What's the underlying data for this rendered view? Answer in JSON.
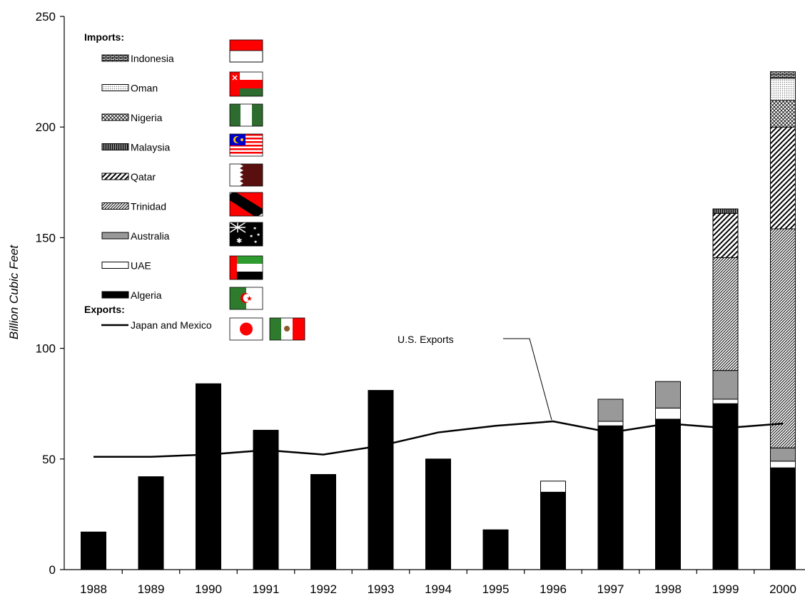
{
  "chart_data": {
    "type": "bar",
    "stacked": true,
    "ylabel": "Billion Cubic Feet",
    "ylim": [
      0,
      250
    ],
    "yticks": [
      "0",
      "50",
      "100",
      "150",
      "200",
      "250"
    ],
    "categories": [
      "1988",
      "1989",
      "1990",
      "1991",
      "1992",
      "1993",
      "1994",
      "1995",
      "1996",
      "1997",
      "1998",
      "1999",
      "2000"
    ],
    "series": [
      {
        "name": "Algeria",
        "pattern": "solid-black",
        "values": [
          17,
          42,
          84,
          63,
          43,
          81,
          50,
          18,
          35,
          65,
          68,
          75,
          46
        ]
      },
      {
        "name": "UAE",
        "pattern": "white",
        "values": [
          0,
          0,
          0,
          0,
          0,
          0,
          0,
          0,
          5,
          2,
          5,
          2,
          3
        ]
      },
      {
        "name": "Australia",
        "pattern": "gray",
        "values": [
          0,
          0,
          0,
          0,
          0,
          0,
          0,
          0,
          0,
          10,
          12,
          13,
          6
        ]
      },
      {
        "name": "Trinidad",
        "pattern": "diagonal-dense",
        "values": [
          0,
          0,
          0,
          0,
          0,
          0,
          0,
          0,
          0,
          0,
          0,
          51,
          99
        ]
      },
      {
        "name": "Qatar",
        "pattern": "diagonal-coarse",
        "values": [
          0,
          0,
          0,
          0,
          0,
          0,
          0,
          0,
          0,
          0,
          0,
          20,
          46
        ]
      },
      {
        "name": "Malaysia",
        "pattern": "vertical-stripes",
        "values": [
          0,
          0,
          0,
          0,
          0,
          0,
          0,
          0,
          0,
          0,
          0,
          2,
          0
        ]
      },
      {
        "name": "Nigeria",
        "pattern": "crosshatch",
        "values": [
          0,
          0,
          0,
          0,
          0,
          0,
          0,
          0,
          0,
          0,
          0,
          0,
          12
        ]
      },
      {
        "name": "Oman",
        "pattern": "dots",
        "values": [
          0,
          0,
          0,
          0,
          0,
          0,
          0,
          0,
          0,
          0,
          0,
          0,
          10
        ]
      },
      {
        "name": "Indonesia",
        "pattern": "brick",
        "values": [
          0,
          0,
          0,
          0,
          0,
          0,
          0,
          0,
          0,
          0,
          0,
          0,
          3
        ]
      }
    ],
    "line": {
      "name": "Japan and Mexico",
      "values": [
        51,
        51,
        52,
        54,
        52,
        56,
        62,
        65,
        67,
        62,
        66,
        64,
        66
      ]
    },
    "legend": {
      "imports_heading": "Imports:",
      "exports_heading": "Exports:",
      "items": [
        {
          "label": "Indonesia",
          "pattern": "brick",
          "flag": "indonesia-flag"
        },
        {
          "label": "Oman",
          "pattern": "dots",
          "flag": "oman-flag"
        },
        {
          "label": "Nigeria",
          "pattern": "crosshatch",
          "flag": "nigeria-flag"
        },
        {
          "label": "Malaysia",
          "pattern": "vertical-stripes",
          "flag": "malaysia-flag"
        },
        {
          "label": "Qatar",
          "pattern": "diagonal-coarse",
          "flag": "qatar-flag"
        },
        {
          "label": "Trinidad",
          "pattern": "diagonal-dense",
          "flag": "trinidad-flag"
        },
        {
          "label": "Australia",
          "pattern": "gray",
          "flag": "australia-flag"
        },
        {
          "label": "UAE",
          "pattern": "white",
          "flag": "uae-flag"
        },
        {
          "label": "Algeria",
          "pattern": "solid-black",
          "flag": "algeria-flag"
        }
      ],
      "export_item": {
        "label": "Japan and Mexico",
        "flags": [
          "japan-flag",
          "mexico-flag"
        ]
      },
      "placement": "top-left"
    },
    "annotation": {
      "text": "U.S. Exports",
      "target_year": "1996",
      "target_value": 67
    },
    "grid": false
  },
  "colors": {
    "bar_black": "#000000",
    "bar_gray": "#999999",
    "flag_red": "#ff0000",
    "flag_green": "#2e6b2e",
    "flag_white": "#ffffff",
    "flag_maroon": "#5a0f0f",
    "flag_blue": "#0000cc",
    "flag_yellow": "#ffcc00"
  }
}
